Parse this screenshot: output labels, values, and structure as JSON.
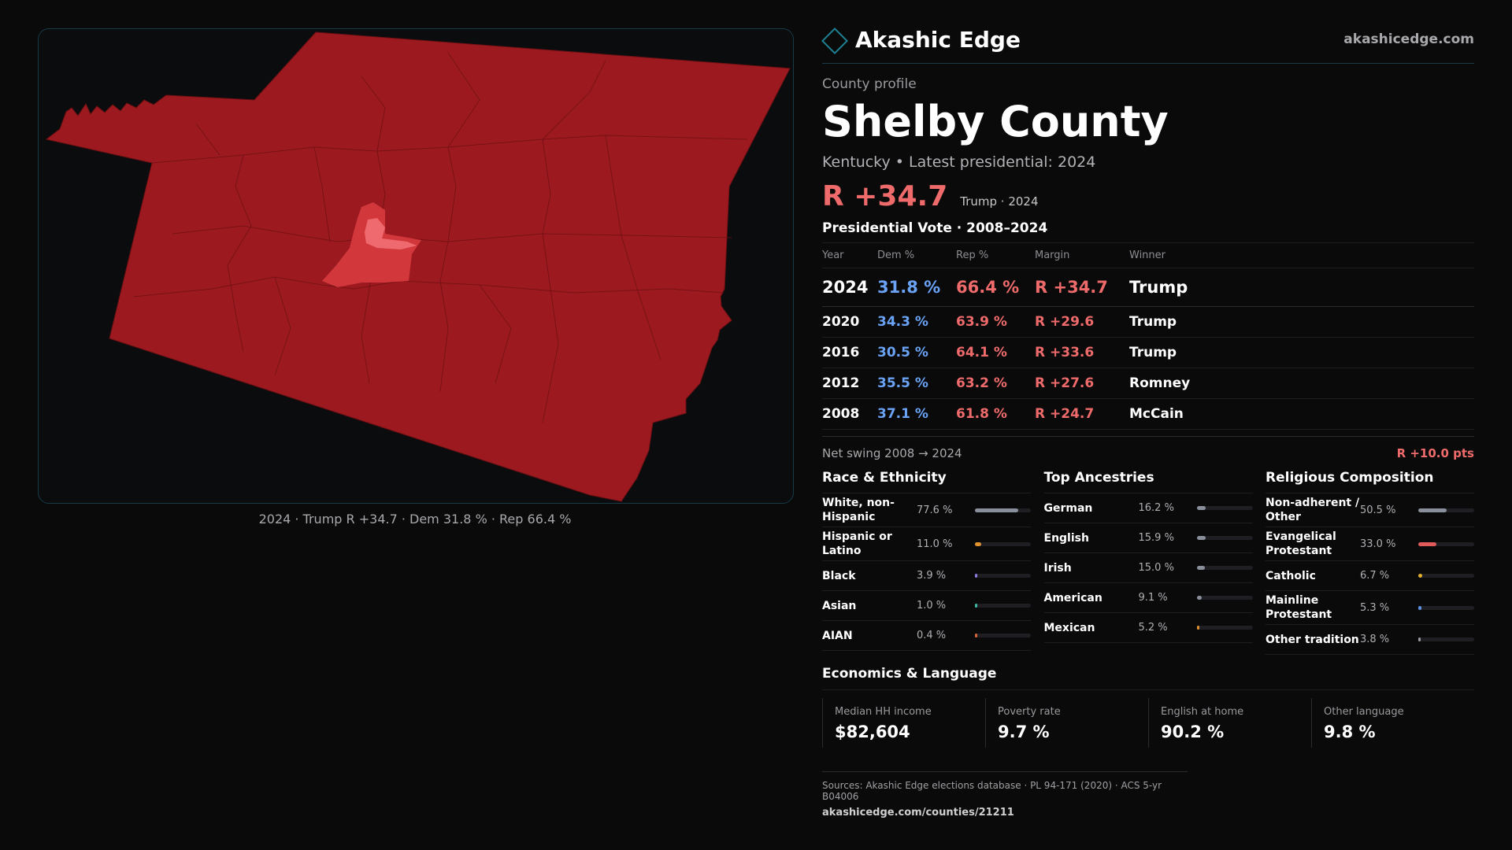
{
  "map": {
    "caption": "2024 · Trump R +34.7 · Dem 31.8 % · Rep 66.4 %",
    "colors": {
      "base": "#9c1a1f",
      "urban": "#d2373c",
      "urban_light": "#ee6a6f",
      "border": "#6e1014"
    }
  },
  "brand": {
    "name": "Akashic Edge",
    "url": "akashicedge.com"
  },
  "profile": {
    "kicker": "County profile",
    "title": "Shelby County",
    "subtitle": "Kentucky • Latest presidential: 2024",
    "margin": "R +34.7",
    "margin_meta": "Trump · 2024"
  },
  "votes": {
    "title": "Presidential Vote · 2008–2024",
    "headers": {
      "year": "Year",
      "dem": "Dem %",
      "rep": "Rep %",
      "margin": "Margin",
      "winner": "Winner"
    },
    "rows": [
      {
        "year": "2024",
        "dem": "31.8 %",
        "rep": "66.4 %",
        "margin": "R +34.7",
        "winner": "Trump"
      },
      {
        "year": "2020",
        "dem": "34.3 %",
        "rep": "63.9 %",
        "margin": "R +29.6",
        "winner": "Trump"
      },
      {
        "year": "2016",
        "dem": "30.5 %",
        "rep": "64.1 %",
        "margin": "R +33.6",
        "winner": "Trump"
      },
      {
        "year": "2012",
        "dem": "35.5 %",
        "rep": "63.2 %",
        "margin": "R +27.6",
        "winner": "Romney"
      },
      {
        "year": "2008",
        "dem": "37.1 %",
        "rep": "61.8 %",
        "margin": "R +24.7",
        "winner": "McCain"
      }
    ],
    "swing_label": "Net swing 2008 → 2024",
    "swing_value": "R +10.0 pts"
  },
  "race": {
    "title": "Race & Ethnicity",
    "items": [
      {
        "label": "White, non-Hispanic",
        "value": "77.6 %",
        "pct": 77.6,
        "color": "#8a8f9c"
      },
      {
        "label": "Hispanic or Latino",
        "value": "11.0 %",
        "pct": 11.0,
        "color": "#e0922e"
      },
      {
        "label": "Black",
        "value": "3.9 %",
        "pct": 3.9,
        "color": "#8a7fe0"
      },
      {
        "label": "Asian",
        "value": "1.0 %",
        "pct": 1.0,
        "color": "#3fb8a8"
      },
      {
        "label": "AIAN",
        "value": "0.4 %",
        "pct": 0.4,
        "color": "#d8643a"
      }
    ]
  },
  "ancestry": {
    "title": "Top Ancestries",
    "items": [
      {
        "label": "German",
        "value": "16.2 %",
        "pct": 16.2,
        "color": "#8a8f9c"
      },
      {
        "label": "English",
        "value": "15.9 %",
        "pct": 15.9,
        "color": "#8a8f9c"
      },
      {
        "label": "Irish",
        "value": "15.0 %",
        "pct": 15.0,
        "color": "#8a8f9c"
      },
      {
        "label": "American",
        "value": "9.1 %",
        "pct": 9.1,
        "color": "#8a8f9c"
      },
      {
        "label": "Mexican",
        "value": "5.2 %",
        "pct": 5.2,
        "color": "#e0922e"
      }
    ]
  },
  "religion": {
    "title": "Religious Composition",
    "items": [
      {
        "label": "Non-adherent / Other",
        "value": "50.5 %",
        "pct": 50.5,
        "color": "#8a8f9c"
      },
      {
        "label": "Evangelical Protestant",
        "value": "33.0 %",
        "pct": 33.0,
        "color": "#e05a5a"
      },
      {
        "label": "Catholic",
        "value": "6.7 %",
        "pct": 6.7,
        "color": "#e0b02e"
      },
      {
        "label": "Mainline Protestant",
        "value": "5.3 %",
        "pct": 5.3,
        "color": "#5a8fe0"
      },
      {
        "label": "Other tradition",
        "value": "3.8 %",
        "pct": 3.8,
        "color": "#9a9aa0"
      }
    ]
  },
  "economics": {
    "title": "Economics & Language",
    "items": [
      {
        "label": "Median HH income",
        "value": "$82,604"
      },
      {
        "label": "Poverty rate",
        "value": "9.7 %"
      },
      {
        "label": "English at home",
        "value": "90.2 %"
      },
      {
        "label": "Other language",
        "value": "9.8 %"
      }
    ]
  },
  "sources": {
    "line": "Sources: Akashic Edge elections database · PL 94-171 (2020) · ACS 5-yr B04006",
    "url": "akashicedge.com/counties/21211"
  }
}
